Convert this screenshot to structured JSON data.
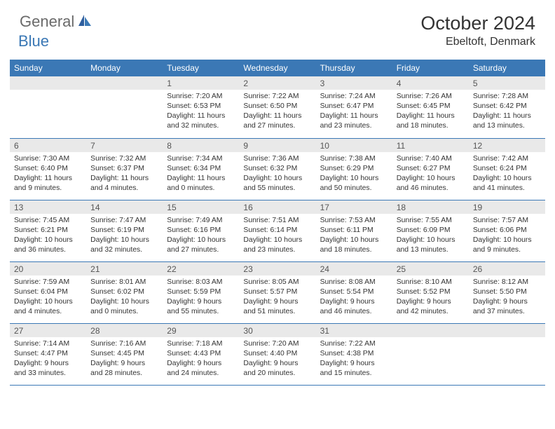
{
  "logo": {
    "text1": "General",
    "text2": "Blue"
  },
  "title": "October 2024",
  "location": "Ebeltoft, Denmark",
  "colors": {
    "header_bg": "#3b78b5",
    "header_text": "#ffffff",
    "daynum_bg": "#e9e9e9",
    "border": "#3b78b5",
    "logo_gray": "#6a6a6a",
    "logo_blue": "#3b78b5"
  },
  "day_headers": [
    "Sunday",
    "Monday",
    "Tuesday",
    "Wednesday",
    "Thursday",
    "Friday",
    "Saturday"
  ],
  "weeks": [
    [
      {
        "blank": true
      },
      {
        "blank": true
      },
      {
        "n": "1",
        "sunrise": "7:20 AM",
        "sunset": "6:53 PM",
        "daylight": "11 hours and 32 minutes."
      },
      {
        "n": "2",
        "sunrise": "7:22 AM",
        "sunset": "6:50 PM",
        "daylight": "11 hours and 27 minutes."
      },
      {
        "n": "3",
        "sunrise": "7:24 AM",
        "sunset": "6:47 PM",
        "daylight": "11 hours and 23 minutes."
      },
      {
        "n": "4",
        "sunrise": "7:26 AM",
        "sunset": "6:45 PM",
        "daylight": "11 hours and 18 minutes."
      },
      {
        "n": "5",
        "sunrise": "7:28 AM",
        "sunset": "6:42 PM",
        "daylight": "11 hours and 13 minutes."
      }
    ],
    [
      {
        "n": "6",
        "sunrise": "7:30 AM",
        "sunset": "6:40 PM",
        "daylight": "11 hours and 9 minutes."
      },
      {
        "n": "7",
        "sunrise": "7:32 AM",
        "sunset": "6:37 PM",
        "daylight": "11 hours and 4 minutes."
      },
      {
        "n": "8",
        "sunrise": "7:34 AM",
        "sunset": "6:34 PM",
        "daylight": "11 hours and 0 minutes."
      },
      {
        "n": "9",
        "sunrise": "7:36 AM",
        "sunset": "6:32 PM",
        "daylight": "10 hours and 55 minutes."
      },
      {
        "n": "10",
        "sunrise": "7:38 AM",
        "sunset": "6:29 PM",
        "daylight": "10 hours and 50 minutes."
      },
      {
        "n": "11",
        "sunrise": "7:40 AM",
        "sunset": "6:27 PM",
        "daylight": "10 hours and 46 minutes."
      },
      {
        "n": "12",
        "sunrise": "7:42 AM",
        "sunset": "6:24 PM",
        "daylight": "10 hours and 41 minutes."
      }
    ],
    [
      {
        "n": "13",
        "sunrise": "7:45 AM",
        "sunset": "6:21 PM",
        "daylight": "10 hours and 36 minutes."
      },
      {
        "n": "14",
        "sunrise": "7:47 AM",
        "sunset": "6:19 PM",
        "daylight": "10 hours and 32 minutes."
      },
      {
        "n": "15",
        "sunrise": "7:49 AM",
        "sunset": "6:16 PM",
        "daylight": "10 hours and 27 minutes."
      },
      {
        "n": "16",
        "sunrise": "7:51 AM",
        "sunset": "6:14 PM",
        "daylight": "10 hours and 23 minutes."
      },
      {
        "n": "17",
        "sunrise": "7:53 AM",
        "sunset": "6:11 PM",
        "daylight": "10 hours and 18 minutes."
      },
      {
        "n": "18",
        "sunrise": "7:55 AM",
        "sunset": "6:09 PM",
        "daylight": "10 hours and 13 minutes."
      },
      {
        "n": "19",
        "sunrise": "7:57 AM",
        "sunset": "6:06 PM",
        "daylight": "10 hours and 9 minutes."
      }
    ],
    [
      {
        "n": "20",
        "sunrise": "7:59 AM",
        "sunset": "6:04 PM",
        "daylight": "10 hours and 4 minutes."
      },
      {
        "n": "21",
        "sunrise": "8:01 AM",
        "sunset": "6:02 PM",
        "daylight": "10 hours and 0 minutes."
      },
      {
        "n": "22",
        "sunrise": "8:03 AM",
        "sunset": "5:59 PM",
        "daylight": "9 hours and 55 minutes."
      },
      {
        "n": "23",
        "sunrise": "8:05 AM",
        "sunset": "5:57 PM",
        "daylight": "9 hours and 51 minutes."
      },
      {
        "n": "24",
        "sunrise": "8:08 AM",
        "sunset": "5:54 PM",
        "daylight": "9 hours and 46 minutes."
      },
      {
        "n": "25",
        "sunrise": "8:10 AM",
        "sunset": "5:52 PM",
        "daylight": "9 hours and 42 minutes."
      },
      {
        "n": "26",
        "sunrise": "8:12 AM",
        "sunset": "5:50 PM",
        "daylight": "9 hours and 37 minutes."
      }
    ],
    [
      {
        "n": "27",
        "sunrise": "7:14 AM",
        "sunset": "4:47 PM",
        "daylight": "9 hours and 33 minutes."
      },
      {
        "n": "28",
        "sunrise": "7:16 AM",
        "sunset": "4:45 PM",
        "daylight": "9 hours and 28 minutes."
      },
      {
        "n": "29",
        "sunrise": "7:18 AM",
        "sunset": "4:43 PM",
        "daylight": "9 hours and 24 minutes."
      },
      {
        "n": "30",
        "sunrise": "7:20 AM",
        "sunset": "4:40 PM",
        "daylight": "9 hours and 20 minutes."
      },
      {
        "n": "31",
        "sunrise": "7:22 AM",
        "sunset": "4:38 PM",
        "daylight": "9 hours and 15 minutes."
      },
      {
        "blank": true
      },
      {
        "blank": true
      }
    ]
  ],
  "labels": {
    "sunrise": "Sunrise:",
    "sunset": "Sunset:",
    "daylight": "Daylight:"
  }
}
